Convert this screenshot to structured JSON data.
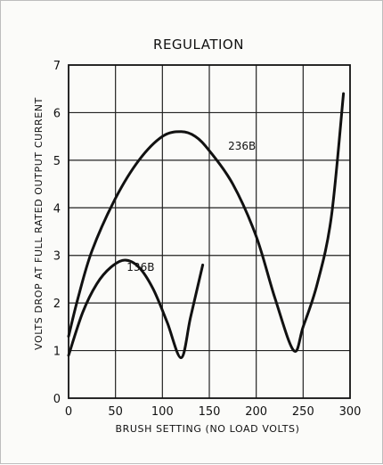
{
  "chart_data": {
    "type": "line",
    "title": "REGULATION",
    "xlabel": "BRUSH SETTING (NO LOAD VOLTS)",
    "ylabel": "VOLTS DROP AT FULL RATED OUTPUT CURRENT",
    "xlim": [
      0,
      300
    ],
    "ylim": [
      0,
      7
    ],
    "x_ticks": [
      0,
      50,
      100,
      150,
      200,
      250,
      300
    ],
    "y_ticks": [
      0,
      1,
      2,
      3,
      4,
      5,
      6,
      7
    ],
    "grid": true,
    "series": [
      {
        "name": "236B",
        "x": [
          0,
          10,
          25,
          50,
          75,
          100,
          120,
          135,
          150,
          175,
          200,
          220,
          240,
          250,
          265,
          280,
          293
        ],
        "y": [
          1.3,
          2.1,
          3.1,
          4.2,
          5.0,
          5.5,
          5.6,
          5.5,
          5.2,
          4.5,
          3.4,
          2.1,
          1.0,
          1.5,
          2.4,
          3.8,
          6.4
        ]
      },
      {
        "name": "136B",
        "x": [
          0,
          15,
          30,
          45,
          60,
          75,
          90,
          105,
          120,
          130,
          143
        ],
        "y": [
          0.9,
          1.8,
          2.4,
          2.75,
          2.9,
          2.75,
          2.3,
          1.6,
          0.85,
          1.7,
          2.8
        ]
      }
    ]
  }
}
